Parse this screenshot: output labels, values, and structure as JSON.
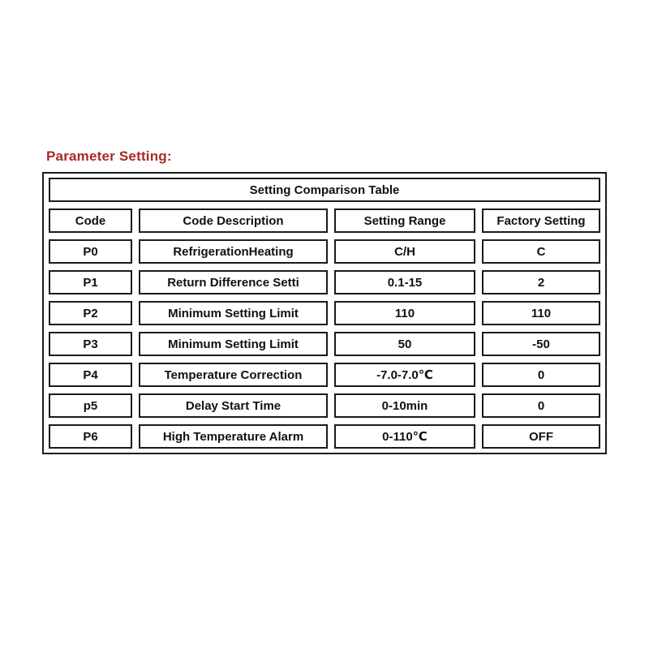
{
  "heading": {
    "label": "Parameter Setting:",
    "color": "#a92a22"
  },
  "table": {
    "title": "Setting Comparison Table",
    "border_color": "#1b1b1b",
    "columns": [
      "Code",
      "Code Description",
      "Setting Range",
      "Factory Setting"
    ],
    "rows": [
      {
        "code": "P0",
        "description": "RefrigerationHeating",
        "range": "C/H",
        "factory": "C"
      },
      {
        "code": "P1",
        "description": "Return Difference Setti",
        "range": "0.1-15",
        "factory": "2"
      },
      {
        "code": "P2",
        "description": "Minimum Setting Limit",
        "range": "110",
        "factory": "110"
      },
      {
        "code": "P3",
        "description": "Minimum Setting Limit",
        "range": "50",
        "factory": "-50"
      },
      {
        "code": "P4",
        "description": "Temperature Correction",
        "range": "-7.0-7.0℃",
        "factory": "0"
      },
      {
        "code": "p5",
        "description": "Delay Start Time",
        "range": "0-10min",
        "factory": "0"
      },
      {
        "code": "P6",
        "description": "High Temperature Alarm",
        "range": "0-110℃",
        "factory": "OFF"
      }
    ]
  }
}
